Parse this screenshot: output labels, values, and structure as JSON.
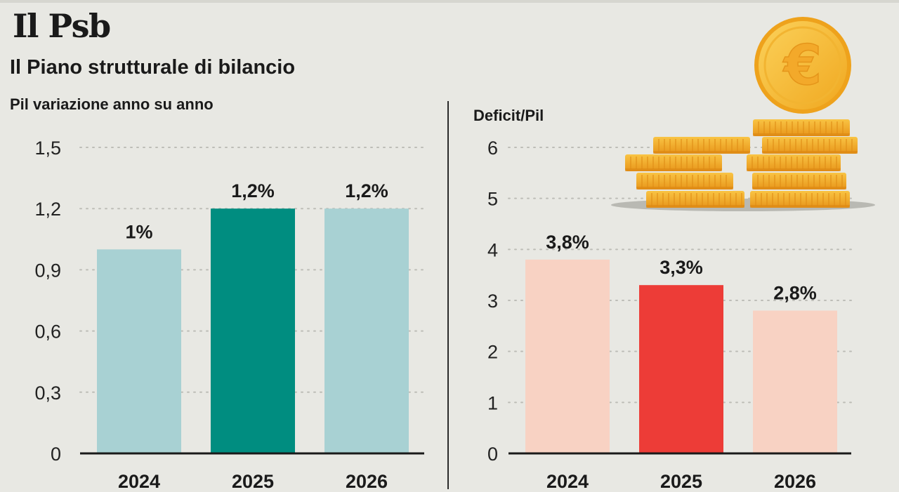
{
  "header": {
    "title": "Il Psb",
    "subtitle": "Il Piano strutturale di bilancio"
  },
  "colors": {
    "background": "#e8e8e3",
    "pil_light": "#a8d1d3",
    "pil_highlight": "#008d80",
    "deficit_light": "#f8d2c3",
    "deficit_highlight": "#ed3c37"
  },
  "illustration": {
    "icon": "euro-coin-stack-icon",
    "coin_symbol": "€"
  },
  "chart_data": [
    {
      "type": "bar",
      "title": "Pil variazione anno su anno",
      "categories": [
        "2024",
        "2025",
        "2026"
      ],
      "values": [
        1.0,
        1.2,
        1.2
      ],
      "data_labels": [
        "1%",
        "1,2%",
        "1,2%"
      ],
      "highlight_index": 1,
      "ylim": [
        0,
        1.5
      ],
      "yticks": [
        0,
        0.3,
        0.6,
        0.9,
        1.2,
        1.5
      ],
      "ytick_labels": [
        "0",
        "0,3",
        "0,6",
        "0,9",
        "1,2",
        "1,5"
      ],
      "grid": "dotted horizontal",
      "legend": "none"
    },
    {
      "type": "bar",
      "title": "Deficit/Pil",
      "categories": [
        "2024",
        "2025",
        "2026"
      ],
      "values": [
        3.8,
        3.3,
        2.8
      ],
      "data_labels": [
        "3,8%",
        "3,3%",
        "2,8%"
      ],
      "highlight_index": 1,
      "ylim": [
        0,
        6
      ],
      "yticks": [
        0,
        1,
        2,
        3,
        4,
        5,
        6
      ],
      "ytick_labels": [
        "0",
        "1",
        "2",
        "3",
        "4",
        "5",
        "6"
      ],
      "grid": "dotted horizontal",
      "legend": "none"
    }
  ]
}
